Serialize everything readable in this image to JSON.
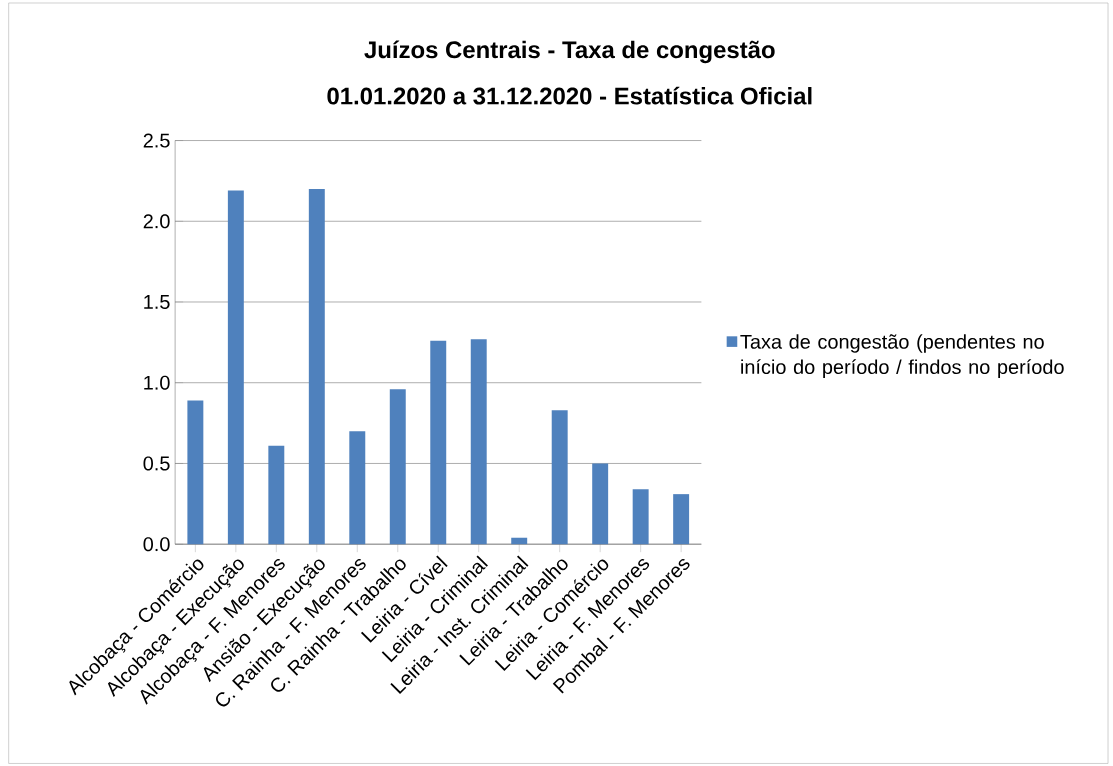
{
  "chart_data": {
    "type": "bar",
    "title": "Juízos Centrais - Taxa de congestão",
    "subtitle": "01.01.2020 a 31.12.2020 - Estatística Oficial",
    "categories": [
      "Alcobaça - Comércio",
      "Alcobaça - Execução",
      "Alcobaça - F. Menores",
      "Ansião - Execução",
      "C. Rainha - F. Menores",
      "C. Rainha - Trabalho",
      "Leiria - Cível",
      "Leiria - Criminal",
      "Leiria - Inst. Criminal",
      "Leiria - Trabalho",
      "Leiria - Comércio",
      "Leiria - F. Menores",
      "Pombal - F. Menores"
    ],
    "series": [
      {
        "name": "Taxa de congestão (pendentes no início do período / findos no período",
        "color": "#4f81bd",
        "values": [
          0.89,
          2.19,
          0.61,
          2.2,
          0.7,
          0.96,
          1.26,
          1.27,
          0.04,
          0.83,
          0.5,
          0.34,
          0.31
        ]
      }
    ],
    "ylim": [
      0,
      2.5
    ],
    "yticks": [
      {
        "value": 0,
        "label": "0.0"
      },
      {
        "value": 0.5,
        "label": "0.5"
      },
      {
        "value": 1,
        "label": "1.0"
      },
      {
        "value": 1.5,
        "label": "1.5"
      },
      {
        "value": 2,
        "label": "2.0"
      },
      {
        "value": 2.5,
        "label": "2.5"
      }
    ],
    "grid": "y",
    "legend": "right"
  }
}
